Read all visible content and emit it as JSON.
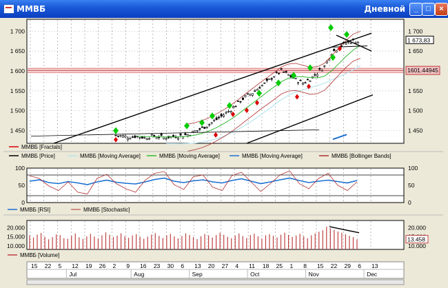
{
  "window": {
    "title": "ММВБ",
    "period": "Дневной"
  },
  "colors": {
    "price": "#000000",
    "fractal_up": "#00cc00",
    "fractal_down": "#dd0000",
    "ma_fast": "#b8e6f0",
    "ma_mid": "#33bb33",
    "ma_slow": "#1a6fd0",
    "bollinger": "#b03030",
    "rsi": "#1a6fd0",
    "stochastic": "#b03030",
    "volume": "#c04040",
    "support": "#c04040"
  },
  "chart_data": [
    {
      "type": "candlestick",
      "name": "price-panel",
      "ylim": [
        1418,
        1730
      ],
      "y_ticks": [
        "1 700",
        "1 650",
        "1 600",
        "1 550",
        "1 500",
        "1 450"
      ],
      "y_tick_values": [
        1700,
        1650,
        1600,
        1550,
        1500,
        1450
      ],
      "x_ticks": [
        "15",
        "22",
        "5",
        "12",
        "19",
        "26",
        "2",
        "9",
        "16",
        "23",
        "30",
        "6",
        "13",
        "20",
        "27",
        "4",
        "11",
        "18",
        "25",
        "1",
        "8",
        "15",
        "22",
        "29",
        "6",
        "13"
      ],
      "months": [
        "Jul",
        "Aug",
        "Sep",
        "Oct",
        "Nov",
        "Dec"
      ],
      "last_price_label": "1 673,83",
      "support_label": "1601.44945",
      "support_level": 1601.4,
      "legend": [
        "ММВБ [Fractals]",
        "ММВБ [Price]",
        "ММВБ [Moving Average]",
        "ММВБ [Moving Average]",
        "ММВБ [Moving Average]",
        "ММВБ [Bollinger Bands]"
      ],
      "close_path": [
        1438,
        1436,
        1434,
        1436,
        1432,
        1436,
        1434,
        1433,
        1435,
        1437,
        1440,
        1448,
        1456,
        1466,
        1478,
        1490,
        1503,
        1520,
        1535,
        1545,
        1560,
        1572,
        1588,
        1600,
        1590,
        1578,
        1570,
        1580,
        1595,
        1612,
        1646,
        1660,
        1670,
        1676,
        1673
      ],
      "fractals_up": [
        1443,
        1455,
        1463,
        1480,
        1506,
        1537,
        1563,
        1582,
        1601,
        1627,
        1702,
        1685
      ],
      "fractals_down": [
        1434,
        1446,
        1498,
        1508,
        1527,
        1542,
        1568,
        1663
      ]
    },
    {
      "type": "line",
      "name": "oscillator-panel",
      "ylim": [
        0,
        100
      ],
      "y_ticks": [
        "100",
        "50",
        "0"
      ],
      "y_tick_values": [
        100,
        50,
        0
      ],
      "legend": [
        "ММВБ [RSI]",
        "ММВБ [Stochastic]"
      ],
      "series": [
        {
          "name": "ММВБ [RSI]",
          "values": [
            62,
            66,
            58,
            55,
            61,
            57,
            52,
            60,
            65,
            59,
            56,
            54,
            60,
            67,
            71,
            62,
            58,
            63,
            66,
            60,
            57,
            64,
            69,
            62,
            55,
            60,
            66,
            71,
            64,
            58,
            62,
            65,
            61,
            57,
            64
          ]
        },
        {
          "name": "ММВБ [Stochastic]",
          "values": [
            78,
            70,
            48,
            35,
            60,
            30,
            25,
            70,
            82,
            55,
            40,
            30,
            65,
            85,
            90,
            52,
            38,
            75,
            80,
            45,
            35,
            78,
            88,
            60,
            32,
            55,
            80,
            92,
            55,
            40,
            70,
            85,
            50,
            35,
            60
          ]
        }
      ]
    },
    {
      "type": "bar",
      "name": "volume-panel",
      "ylim": [
        8000,
        24000
      ],
      "y_ticks": [
        "20.000",
        "15.000",
        "10.000"
      ],
      "y_tick_values": [
        20000,
        15000,
        10000
      ],
      "last_volume_label": "13.458",
      "legend": [
        "ММВБ [Volume]"
      ],
      "values": [
        15800,
        14600,
        16200,
        17100,
        15000,
        13600,
        14800,
        16300,
        15900,
        14200,
        13900,
        15500,
        16800,
        14700,
        13800,
        15200,
        16600,
        15100,
        14000,
        15800,
        17400,
        16100,
        14900,
        15600,
        16900,
        15300,
        14400,
        15700,
        16400,
        15000,
        13900,
        15100,
        16200,
        17000,
        15500,
        14300,
        15800,
        16600,
        15200,
        14100,
        15400,
        16900,
        16000,
        14800,
        13700,
        15300,
        16500,
        15800,
        14600,
        15900,
        17200,
        16100,
        15000,
        14200,
        15600,
        16800,
        15400,
        14300,
        15900,
        16700,
        15200,
        14000,
        15800,
        16400,
        15500,
        14600,
        16100,
        17300,
        16000,
        14900,
        15700,
        16600,
        15300,
        14200,
        15800,
        16900,
        17800,
        18600,
        20600,
        19600,
        18800,
        17900,
        17200,
        16400,
        15500,
        14800,
        13458
      ]
    }
  ]
}
